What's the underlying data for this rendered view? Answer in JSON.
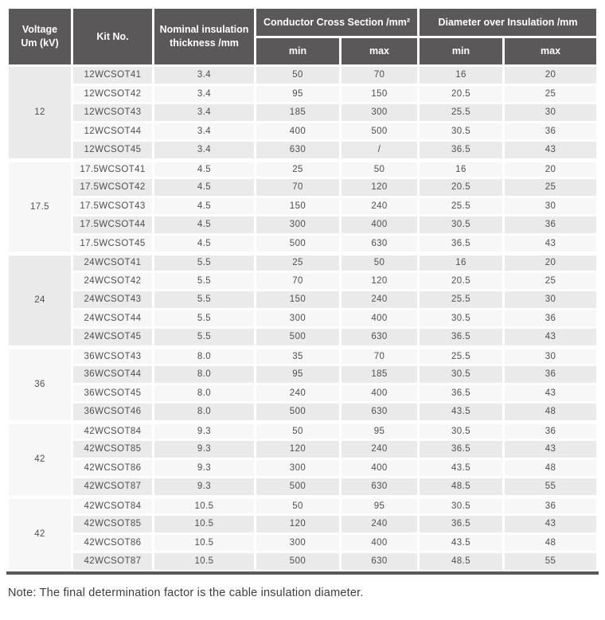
{
  "table": {
    "headers": {
      "voltage": "Voltage\nUm (kV)",
      "kit_no": "Kit No.",
      "nominal": "Nominal insulation\nthickness /mm",
      "conductor_group": "Conductor Cross Section /mm²",
      "diameter_group": "Diameter over Insulation /mm",
      "min": "min",
      "max": "max"
    },
    "colors": {
      "header_bg": "#5a5858",
      "row_shade_dark": "#eaeaea",
      "row_shade_light": "#f7f7f7",
      "header_text": "#ffffff",
      "cell_text": "#4f4f4f"
    },
    "groups": [
      {
        "voltage": "12",
        "rows": [
          [
            "12WCSOT41",
            "3.4",
            "50",
            "70",
            "16",
            "20"
          ],
          [
            "12WCSOT42",
            "3.4",
            "95",
            "150",
            "20.5",
            "25"
          ],
          [
            "12WCSOT43",
            "3.4",
            "185",
            "300",
            "25.5",
            "30"
          ],
          [
            "12WCSOT44",
            "3.4",
            "400",
            "500",
            "30.5",
            "36"
          ],
          [
            "12WCSOT45",
            "3.4",
            "630",
            "/",
            "36.5",
            "43"
          ]
        ]
      },
      {
        "voltage": "17.5",
        "rows": [
          [
            "17.5WCSOT41",
            "4.5",
            "25",
            "50",
            "16",
            "20"
          ],
          [
            "17.5WCSOT42",
            "4.5",
            "70",
            "120",
            "20.5",
            "25"
          ],
          [
            "17.5WCSOT43",
            "4.5",
            "150",
            "240",
            "25.5",
            "30"
          ],
          [
            "17.5WCSOT44",
            "4.5",
            "300",
            "400",
            "30.5",
            "36"
          ],
          [
            "17.5WCSOT45",
            "4.5",
            "500",
            "630",
            "36.5",
            "43"
          ]
        ]
      },
      {
        "voltage": "24",
        "rows": [
          [
            "24WCSOT41",
            "5.5",
            "25",
            "50",
            "16",
            "20"
          ],
          [
            "24WCSOT42",
            "5.5",
            "70",
            "120",
            "20.5",
            "25"
          ],
          [
            "24WCSOT43",
            "5.5",
            "150",
            "240",
            "25.5",
            "30"
          ],
          [
            "24WCSOT44",
            "5.5",
            "300",
            "400",
            "30.5",
            "36"
          ],
          [
            "24WCSOT45",
            "5.5",
            "500",
            "630",
            "36.5",
            "43"
          ]
        ]
      },
      {
        "voltage": "36",
        "rows": [
          [
            "36WCSOT43",
            "8.0",
            "35",
            "70",
            "25.5",
            "30"
          ],
          [
            "36WCSOT44",
            "8.0",
            "95",
            "185",
            "30.5",
            "36"
          ],
          [
            "36WCSOT45",
            "8.0",
            "240",
            "400",
            "36.5",
            "43"
          ],
          [
            "36WCSOT46",
            "8.0",
            "500",
            "630",
            "43.5",
            "48"
          ]
        ]
      },
      {
        "voltage": "42",
        "rows": [
          [
            "42WCSOT84",
            "9.3",
            "50",
            "95",
            "30.5",
            "36"
          ],
          [
            "42WCSOT85",
            "9.3",
            "120",
            "240",
            "36.5",
            "43"
          ],
          [
            "42WCSOT86",
            "9.3",
            "300",
            "400",
            "43.5",
            "48"
          ],
          [
            "42WCSOT87",
            "9.3",
            "500",
            "630",
            "48.5",
            "55"
          ]
        ]
      },
      {
        "voltage": "42",
        "rows": [
          [
            "42WCSOT84",
            "10.5",
            "50",
            "95",
            "30.5",
            "36"
          ],
          [
            "42WCSOT85",
            "10.5",
            "120",
            "240",
            "36.5",
            "43"
          ],
          [
            "42WCSOT86",
            "10.5",
            "300",
            "400",
            "43.5",
            "48"
          ],
          [
            "42WCSOT87",
            "10.5",
            "500",
            "630",
            "48.5",
            "55"
          ]
        ]
      }
    ]
  },
  "note": "Note: The final determination factor is the cable insulation diameter."
}
